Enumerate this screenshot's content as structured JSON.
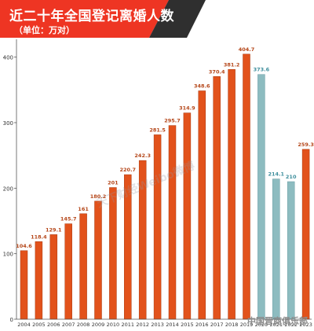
{
  "header": {
    "title": "近二十年全国登记离婚人数",
    "subtitle": "（单位：万对）"
  },
  "watermark": "天下财经Weibo微博",
  "source": "中国晋商俱乐部",
  "colors": {
    "banner": "#ee3523",
    "banner_tail": "#2f2f2f",
    "bar": "#e2521b",
    "bar_highlight": "#8dbcc0",
    "label": "#b5471a",
    "label_highlight": "#3d8e9c"
  },
  "chart_data": {
    "type": "bar",
    "categories": [
      "2004",
      "2005",
      "2006",
      "2007",
      "2008",
      "2009",
      "2010",
      "2011",
      "2012",
      "2013",
      "2014",
      "2015",
      "2016",
      "2017",
      "2018",
      "2019",
      "2020",
      "2021",
      "2022",
      "2023"
    ],
    "values": [
      104.6,
      118.4,
      129.1,
      145.7,
      161,
      180.2,
      201,
      220.7,
      242.3,
      281.5,
      295.7,
      314.9,
      348.6,
      370.4,
      381.2,
      404.7,
      373.6,
      214.1,
      210,
      259.3
    ],
    "value_labels": [
      "104.6",
      "118.4",
      "129.1",
      "145.7",
      "161",
      "180.2",
      "201",
      "220.7",
      "242.3",
      "281.5",
      "295.7",
      "314.9",
      "348.6",
      "370.4",
      "381.2",
      "404.7",
      "373.6",
      "214.1",
      "210",
      "259.3"
    ],
    "highlight_categories": [
      "2020",
      "2021",
      "2022"
    ],
    "yticks": [
      "0",
      "100",
      "200",
      "300",
      "400"
    ],
    "ylim": [
      0,
      420
    ],
    "title": "近二十年全国登记离婚人数",
    "xlabel": "",
    "ylabel": "",
    "grid": false,
    "legend": "none"
  }
}
